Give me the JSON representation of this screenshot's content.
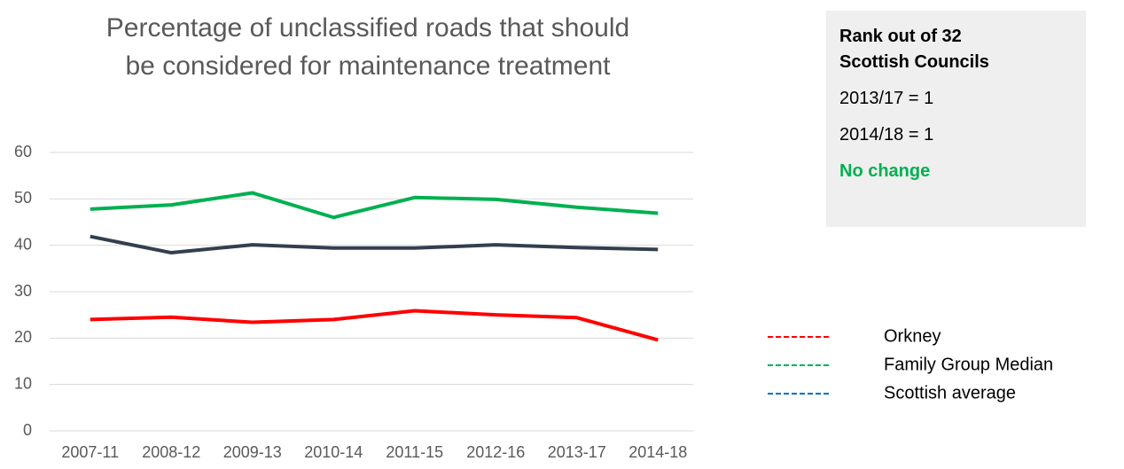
{
  "chart_data": {
    "type": "line",
    "title": "Percentage of unclassified roads that should be considered for maintenance treatment",
    "categories": [
      "2007-11",
      "2008-12",
      "2009-13",
      "2010-14",
      "2011-15",
      "2012-16",
      "2013-17",
      "2014-18"
    ],
    "series": [
      {
        "name": "Orkney",
        "color": "#ff0000",
        "legend_color": "#ff0000",
        "values": [
          24,
          24.5,
          23.4,
          24,
          25.9,
          25,
          24.4,
          19.6
        ]
      },
      {
        "name": "Family Group Median",
        "color": "#00b050",
        "legend_color": "#00b050",
        "values": [
          47.8,
          48.7,
          51.3,
          46,
          50.3,
          49.9,
          48.2,
          46.9
        ]
      },
      {
        "name": "Scottish average",
        "color": "#333f50",
        "legend_color": "#0070c0",
        "values": [
          41.9,
          38.4,
          40.1,
          39.4,
          39.4,
          40.1,
          39.5,
          39.1
        ]
      }
    ],
    "ylim": [
      0,
      60
    ],
    "yticks": [
      0,
      10,
      20,
      30,
      40,
      50,
      60
    ],
    "grid": true
  },
  "panel": {
    "heading": "Rank out of 32 Scottish Councils",
    "lines": [
      "2013/17 = 1",
      "2014/18 = 1"
    ],
    "status": "No change"
  }
}
